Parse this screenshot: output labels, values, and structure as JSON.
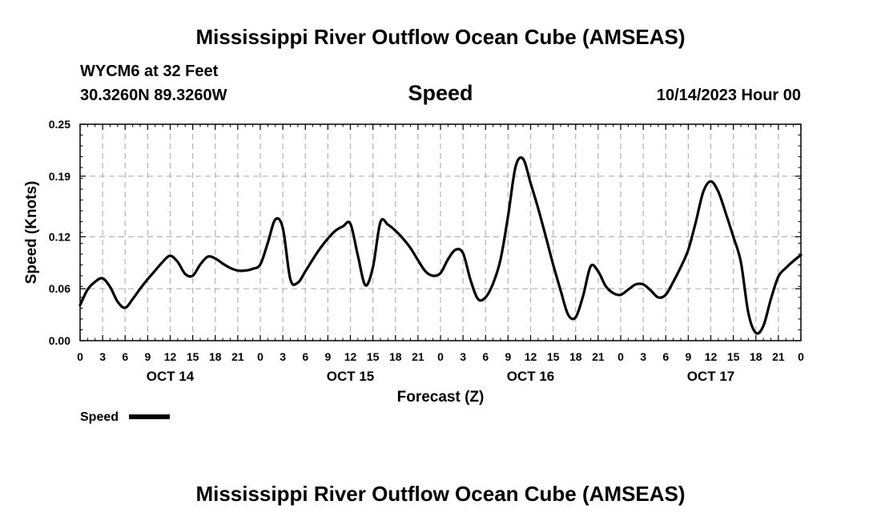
{
  "header": {
    "title": "Mississippi River Outflow Ocean Cube (AMSEAS)",
    "station": "WYCM6 at 32 Feet",
    "coordinates": "30.3260N  89.3260W",
    "panel_title": "Speed",
    "datetime": "10/14/2023 Hour 00",
    "footer_title": "Mississippi River Outflow Ocean Cube (AMSEAS)"
  },
  "legend": {
    "label": "Speed",
    "color": "#000000"
  },
  "chart_data": {
    "type": "line",
    "title": "Speed",
    "xlabel": "Forecast (Z)",
    "ylabel": "Speed (Knots)",
    "xlim": [
      0,
      96
    ],
    "ylim": [
      0,
      0.25
    ],
    "yticks": [
      0.0,
      0.06,
      0.12,
      0.19,
      0.25
    ],
    "ytick_labels": [
      "0.00",
      "0.06",
      "0.12",
      "0.19",
      "0.25"
    ],
    "xticks": [
      0,
      3,
      6,
      9,
      12,
      15,
      18,
      21,
      24,
      27,
      30,
      33,
      36,
      39,
      42,
      45,
      48,
      51,
      54,
      57,
      60,
      63,
      66,
      69,
      72,
      75,
      78,
      81,
      84,
      87,
      90,
      93,
      96
    ],
    "xtick_labels": [
      "0",
      "3",
      "6",
      "9",
      "12",
      "15",
      "18",
      "21",
      "0",
      "3",
      "6",
      "9",
      "12",
      "15",
      "18",
      "21",
      "0",
      "3",
      "6",
      "9",
      "12",
      "15",
      "18",
      "21",
      "0",
      "3",
      "6",
      "9",
      "12",
      "15",
      "18",
      "21",
      "0"
    ],
    "day_labels": [
      {
        "label": "OCT 14",
        "at": 12
      },
      {
        "label": "OCT 15",
        "at": 36
      },
      {
        "label": "OCT 16",
        "at": 60
      },
      {
        "label": "OCT 17",
        "at": 84
      }
    ],
    "grid": true,
    "series": [
      {
        "name": "Speed",
        "color": "#000000",
        "x": [
          0,
          1,
          2,
          3,
          4,
          5,
          6,
          7,
          8,
          9,
          10,
          11,
          12,
          13,
          14,
          15,
          16,
          17,
          18,
          19,
          20,
          21,
          22,
          23,
          24,
          25,
          26,
          27,
          28,
          29,
          30,
          31,
          32,
          33,
          34,
          35,
          36,
          37,
          38,
          39,
          40,
          41,
          42,
          43,
          44,
          45,
          46,
          47,
          48,
          49,
          50,
          51,
          52,
          53,
          54,
          55,
          56,
          57,
          58,
          59,
          60,
          61,
          62,
          63,
          64,
          65,
          66,
          67,
          68,
          69,
          70,
          71,
          72,
          73,
          74,
          75,
          76,
          77,
          78,
          79,
          80,
          81,
          82,
          83,
          84,
          85,
          86,
          87,
          88,
          89,
          90,
          91,
          92,
          93,
          94,
          95,
          96
        ],
        "values": [
          0.041,
          0.059,
          0.068,
          0.072,
          0.062,
          0.045,
          0.038,
          0.048,
          0.06,
          0.071,
          0.081,
          0.091,
          0.098,
          0.091,
          0.077,
          0.075,
          0.088,
          0.097,
          0.095,
          0.089,
          0.084,
          0.081,
          0.081,
          0.083,
          0.088,
          0.113,
          0.14,
          0.13,
          0.071,
          0.067,
          0.08,
          0.094,
          0.107,
          0.118,
          0.127,
          0.132,
          0.135,
          0.098,
          0.064,
          0.085,
          0.137,
          0.134,
          0.127,
          0.118,
          0.107,
          0.093,
          0.08,
          0.075,
          0.078,
          0.094,
          0.105,
          0.101,
          0.07,
          0.048,
          0.05,
          0.066,
          0.094,
          0.144,
          0.201,
          0.21,
          0.182,
          0.153,
          0.121,
          0.088,
          0.058,
          0.03,
          0.027,
          0.052,
          0.086,
          0.08,
          0.063,
          0.055,
          0.053,
          0.059,
          0.065,
          0.065,
          0.058,
          0.05,
          0.053,
          0.068,
          0.085,
          0.105,
          0.137,
          0.172,
          0.184,
          0.172,
          0.147,
          0.12,
          0.091,
          0.032,
          0.009,
          0.017,
          0.048,
          0.074,
          0.084,
          0.092,
          0.099
        ]
      }
    ]
  }
}
